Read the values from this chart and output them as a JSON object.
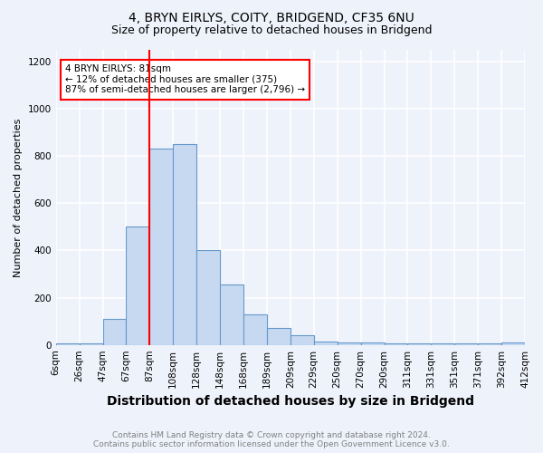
{
  "title1": "4, BRYN EIRLYS, COITY, BRIDGEND, CF35 6NU",
  "title2": "Size of property relative to detached houses in Bridgend",
  "xlabel": "Distribution of detached houses by size in Bridgend",
  "ylabel": "Number of detached properties",
  "footer1": "Contains HM Land Registry data © Crown copyright and database right 2024.",
  "footer2": "Contains public sector information licensed under the Open Government Licence v3.0.",
  "bin_labels": [
    "6sqm",
    "26sqm",
    "47sqm",
    "67sqm",
    "87sqm",
    "108sqm",
    "128sqm",
    "148sqm",
    "168sqm",
    "189sqm",
    "209sqm",
    "229sqm",
    "250sqm",
    "270sqm",
    "290sqm",
    "311sqm",
    "331sqm",
    "351sqm",
    "371sqm",
    "392sqm",
    "412sqm"
  ],
  "bar_heights": [
    5,
    5,
    110,
    500,
    830,
    850,
    400,
    255,
    130,
    70,
    40,
    15,
    10,
    10,
    5,
    5,
    5,
    5,
    5,
    10
  ],
  "bar_color": "#c6d9f0",
  "bar_edge_color": "#6699cc",
  "vline_color": "red",
  "annotation_line1": "4 BRYN EIRLYS: 81sqm",
  "annotation_line2": "← 12% of detached houses are smaller (375)",
  "annotation_line3": "87% of semi-detached houses are larger (2,796) →",
  "annotation_box_color": "white",
  "annotation_box_edge": "red",
  "ylim": [
    0,
    1250
  ],
  "yticks": [
    0,
    200,
    400,
    600,
    800,
    1000,
    1200
  ],
  "bg_color": "#eef2fb",
  "grid_color": "white",
  "title1_fontsize": 10,
  "title2_fontsize": 9,
  "xlabel_fontsize": 10,
  "ylabel_fontsize": 8,
  "tick_fontsize": 7.5,
  "annot_fontsize": 7.5,
  "footer_fontsize": 6.5
}
